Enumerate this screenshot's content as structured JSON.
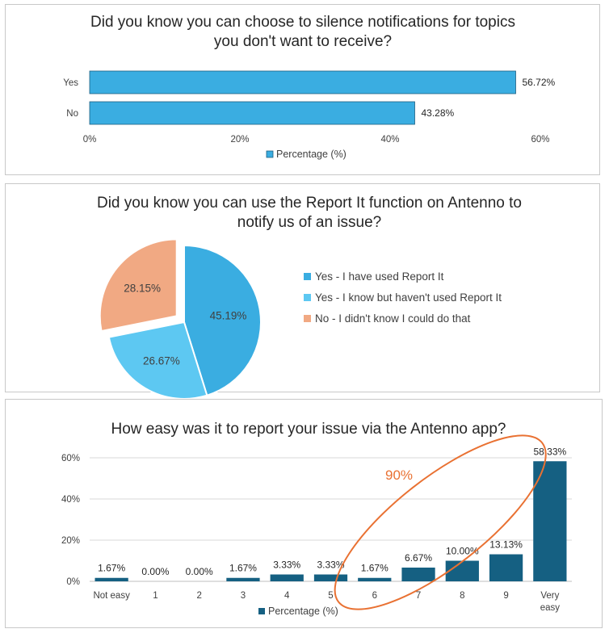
{
  "colors": {
    "bar1": "#3AADE1",
    "bar1_stroke": "#1f5f80",
    "pie_yes_used": "#3AADE1",
    "pie_yes_not_used": "#5DC8F2",
    "pie_no": "#F1A983",
    "bar3": "#156082",
    "annotation": "#E97132"
  },
  "chart_data": [
    {
      "type": "bar",
      "orientation": "horizontal",
      "title": "Did you know you can choose to silence notifications for topics you don't want to receive?",
      "title_lines": [
        "Did you know you can choose to silence notifications for topics",
        "you don't want to receive?"
      ],
      "categories": [
        "Yes",
        "No"
      ],
      "values": [
        56.72,
        43.28
      ],
      "data_labels": [
        "56.72%",
        "43.28%"
      ],
      "xlim": [
        0,
        60
      ],
      "xticks": [
        0,
        20,
        40,
        60
      ],
      "xtick_labels": [
        "0%",
        "20%",
        "40%",
        "60%"
      ],
      "legend": "Percentage (%)",
      "legend_position": "bottom"
    },
    {
      "type": "pie",
      "title": "Did you know you can use the Report It function on Antenno to notify us of an issue?",
      "title_lines": [
        "Did you know you can use the Report It function on Antenno to",
        "notify us of an issue?"
      ],
      "slices": [
        {
          "label": "Yes - I have used Report It",
          "value": 45.19,
          "data_label": "45.19%",
          "color_key": "pie_yes_used"
        },
        {
          "label": "Yes - I know but haven't used Report It",
          "value": 26.67,
          "data_label": "26.67%",
          "color_key": "pie_yes_not_used"
        },
        {
          "label": "No - I didn't know I could do that",
          "value": 28.15,
          "data_label": "28.15%",
          "color_key": "pie_no",
          "exploded": true
        }
      ],
      "legend_position": "right"
    },
    {
      "type": "bar",
      "orientation": "vertical",
      "title": "How easy was it to report your issue via the Antenno app?",
      "categories": [
        "Not easy",
        "1",
        "2",
        "3",
        "4",
        "5",
        "6",
        "7",
        "8",
        "9",
        "Very easy"
      ],
      "category_lines": [
        [
          "Not easy"
        ],
        [
          "1"
        ],
        [
          "2"
        ],
        [
          "3"
        ],
        [
          "4"
        ],
        [
          "5"
        ],
        [
          "6"
        ],
        [
          "7"
        ],
        [
          "8"
        ],
        [
          "9"
        ],
        [
          "Very",
          "easy"
        ]
      ],
      "values": [
        1.67,
        0.0,
        0.0,
        1.67,
        3.33,
        3.33,
        1.67,
        6.67,
        10.0,
        13.13,
        58.33
      ],
      "data_labels": [
        "1.67%",
        "0.00%",
        "0.00%",
        "1.67%",
        "3.33%",
        "3.33%",
        "1.67%",
        "6.67%",
        "10.00%",
        "13.13%",
        "58.33%"
      ],
      "ylim": [
        0,
        60
      ],
      "yticks": [
        0,
        20,
        40,
        60
      ],
      "ytick_labels": [
        "0%",
        "20%",
        "40%",
        "60%"
      ],
      "gridlines": true,
      "legend": "Percentage (%)",
      "legend_position": "bottom",
      "annotation": {
        "text": "90%",
        "shape": "ellipse",
        "encloses": [
          "6",
          "7",
          "8",
          "9",
          "Very easy"
        ]
      }
    }
  ]
}
